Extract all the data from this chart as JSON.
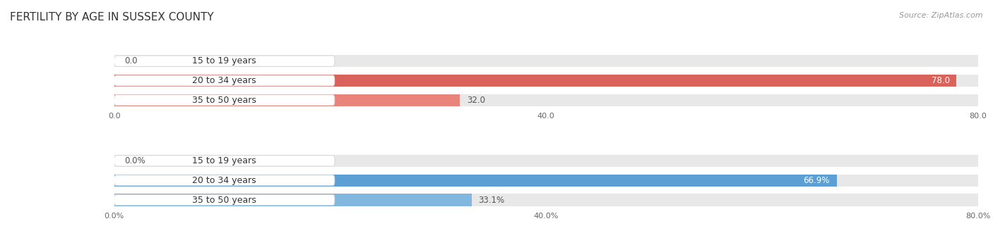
{
  "title": "FERTILITY BY AGE IN SUSSEX COUNTY",
  "source": "Source: ZipAtlas.com",
  "top_bars": {
    "labels": [
      "15 to 19 years",
      "20 to 34 years",
      "35 to 50 years"
    ],
    "values": [
      0.0,
      78.0,
      32.0
    ],
    "max_val": 80.0,
    "axis_ticks": [
      0.0,
      40.0,
      80.0
    ],
    "axis_tick_labels": [
      "0.0",
      "40.0",
      "80.0"
    ],
    "colors": [
      "#e8847c",
      "#d9625a",
      "#e8847c"
    ],
    "bar_value_labels": [
      "0.0",
      "78.0",
      "32.0"
    ],
    "bar_bg_color": "#e8e8e8"
  },
  "bottom_bars": {
    "labels": [
      "15 to 19 years",
      "20 to 34 years",
      "35 to 50 years"
    ],
    "values": [
      0.0,
      66.9,
      33.1
    ],
    "max_val": 80.0,
    "axis_ticks": [
      0.0,
      40.0,
      80.0
    ],
    "axis_tick_labels": [
      "0.0%",
      "40.0%",
      "80.0%"
    ],
    "colors": [
      "#82b8e0",
      "#5b9fd4",
      "#82b8e0"
    ],
    "bar_value_labels": [
      "0.0%",
      "66.9%",
      "33.1%"
    ],
    "bar_bg_color": "#e8e8e8"
  },
  "label_text_color": "#333333",
  "value_label_color_inside": "#ffffff",
  "value_label_color_outside": "#555555",
  "bar_height": 0.62,
  "label_box_color": "#ffffff",
  "fig_bg": "#ffffff",
  "title_fontsize": 11,
  "source_fontsize": 8,
  "label_fontsize": 9,
  "value_fontsize": 8.5
}
